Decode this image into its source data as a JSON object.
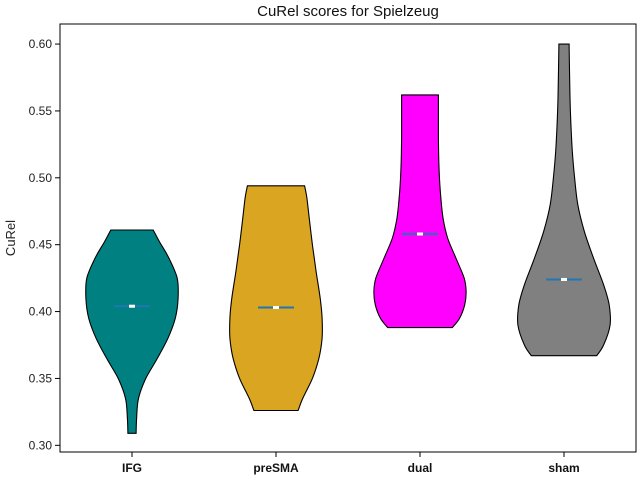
{
  "chart_data": {
    "type": "violin",
    "title": "CuRel scores for Spielzeug",
    "xlabel": "",
    "ylabel": "CuRel",
    "ylim": [
      0.295,
      0.615
    ],
    "yticks": [
      "0.30",
      "0.35",
      "0.40",
      "0.45",
      "0.50",
      "0.55",
      "0.60"
    ],
    "grid": false,
    "categories": [
      "IFG",
      "preSMA",
      "dual",
      "sham"
    ],
    "series": [
      {
        "category": "IFG",
        "color": "#008080",
        "min": 0.309,
        "max": 0.461,
        "median": 0.404,
        "density": [
          [
            0.309,
            0.09
          ],
          [
            0.32,
            0.1
          ],
          [
            0.335,
            0.14
          ],
          [
            0.35,
            0.3
          ],
          [
            0.365,
            0.55
          ],
          [
            0.38,
            0.78
          ],
          [
            0.395,
            0.94
          ],
          [
            0.41,
            1.0
          ],
          [
            0.425,
            0.98
          ],
          [
            0.44,
            0.8
          ],
          [
            0.452,
            0.6
          ],
          [
            0.461,
            0.46
          ]
        ]
      },
      {
        "category": "preSMA",
        "color": "#DAA520",
        "min": 0.326,
        "max": 0.494,
        "median": 0.403,
        "density": [
          [
            0.326,
            0.48
          ],
          [
            0.335,
            0.58
          ],
          [
            0.35,
            0.79
          ],
          [
            0.365,
            0.93
          ],
          [
            0.38,
            1.0
          ],
          [
            0.395,
            1.0
          ],
          [
            0.41,
            0.96
          ],
          [
            0.43,
            0.87
          ],
          [
            0.45,
            0.79
          ],
          [
            0.47,
            0.72
          ],
          [
            0.485,
            0.67
          ],
          [
            0.494,
            0.62
          ]
        ]
      },
      {
        "category": "dual",
        "color": "#FF00FF",
        "min": 0.388,
        "max": 0.562,
        "median": 0.458,
        "density": [
          [
            0.388,
            0.7
          ],
          [
            0.395,
            0.86
          ],
          [
            0.405,
            0.97
          ],
          [
            0.415,
            1.0
          ],
          [
            0.425,
            0.96
          ],
          [
            0.44,
            0.78
          ],
          [
            0.455,
            0.6
          ],
          [
            0.47,
            0.5
          ],
          [
            0.49,
            0.44
          ],
          [
            0.51,
            0.41
          ],
          [
            0.53,
            0.4
          ],
          [
            0.55,
            0.4
          ],
          [
            0.562,
            0.4
          ]
        ]
      },
      {
        "category": "sham",
        "color": "#808080",
        "min": 0.367,
        "max": 0.6,
        "median": 0.424,
        "density": [
          [
            0.367,
            0.71
          ],
          [
            0.375,
            0.86
          ],
          [
            0.39,
            1.0
          ],
          [
            0.405,
            0.98
          ],
          [
            0.42,
            0.86
          ],
          [
            0.44,
            0.64
          ],
          [
            0.46,
            0.44
          ],
          [
            0.48,
            0.3
          ],
          [
            0.5,
            0.23
          ],
          [
            0.52,
            0.18
          ],
          [
            0.54,
            0.15
          ],
          [
            0.56,
            0.13
          ],
          [
            0.58,
            0.12
          ],
          [
            0.6,
            0.11
          ]
        ]
      }
    ]
  }
}
